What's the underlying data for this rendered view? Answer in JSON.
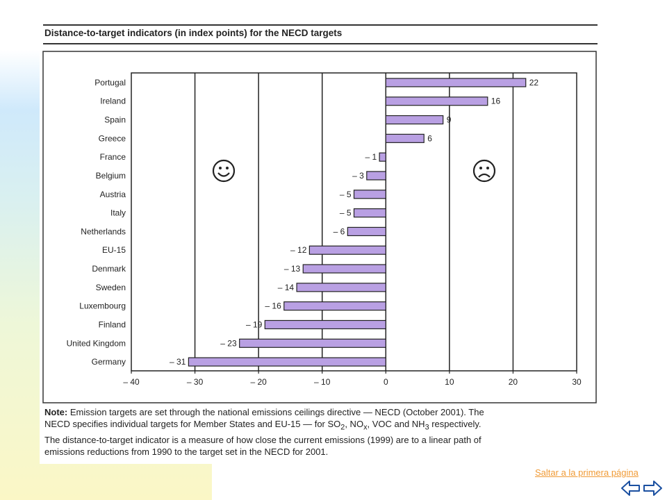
{
  "header": {
    "title": "Distance-to-target indicators (in index points) for the NECD targets"
  },
  "chart_data": {
    "type": "bar",
    "orientation": "horizontal",
    "categories": [
      "Portugal",
      "Ireland",
      "Spain",
      "Greece",
      "France",
      "Belgium",
      "Austria",
      "Italy",
      "Netherlands",
      "EU-15",
      "Denmark",
      "Sweden",
      "Luxembourg",
      "Finland",
      "United Kingdom",
      "Germany"
    ],
    "values": [
      22,
      16,
      9,
      6,
      -1,
      -3,
      -5,
      -5,
      -6,
      -12,
      -13,
      -14,
      -16,
      -19,
      -23,
      -31
    ],
    "value_labels": [
      "22",
      "16",
      "9",
      "6",
      "– 1",
      "– 3",
      "– 5",
      "– 5",
      "– 6",
      "– 12",
      "– 13",
      "– 14",
      "– 16",
      "– 19",
      "– 23",
      "– 31"
    ],
    "xlim": [
      -40,
      30
    ],
    "xticks": [
      -40,
      -30,
      -20,
      -10,
      0,
      10,
      20,
      30
    ],
    "xtick_labels": [
      "– 40",
      "– 30",
      "– 20",
      "– 10",
      "0",
      "10",
      "20",
      "30"
    ],
    "grid": true,
    "bar_color": "#b9a0e3",
    "symbols": {
      "left": "☺",
      "right": "☹"
    }
  },
  "note": {
    "lead": "Note:",
    "line1": " Emission targets are set through the national emissions ceilings directive — NECD (October 2001). The",
    "line2a": "NECD specifies individual targets for Member States and EU-15 — for SO",
    "sub1": "2",
    "line2b": ", NO",
    "sub2": "x",
    "line2c": ", VOC and NH",
    "sub3": "3",
    "line2d": " respectively.",
    "line3": "The distance-to-target indicator is a measure of how close the current emissions (1999) are to a linear path of",
    "line4": "emissions reductions from 1990 to the target set in the NECD for 2001."
  },
  "nav": {
    "link_text": "Saltar a la primera página",
    "accent": "#f09a35",
    "prev_icon": "left-arrow-icon",
    "next_icon": "right-arrow-icon"
  }
}
